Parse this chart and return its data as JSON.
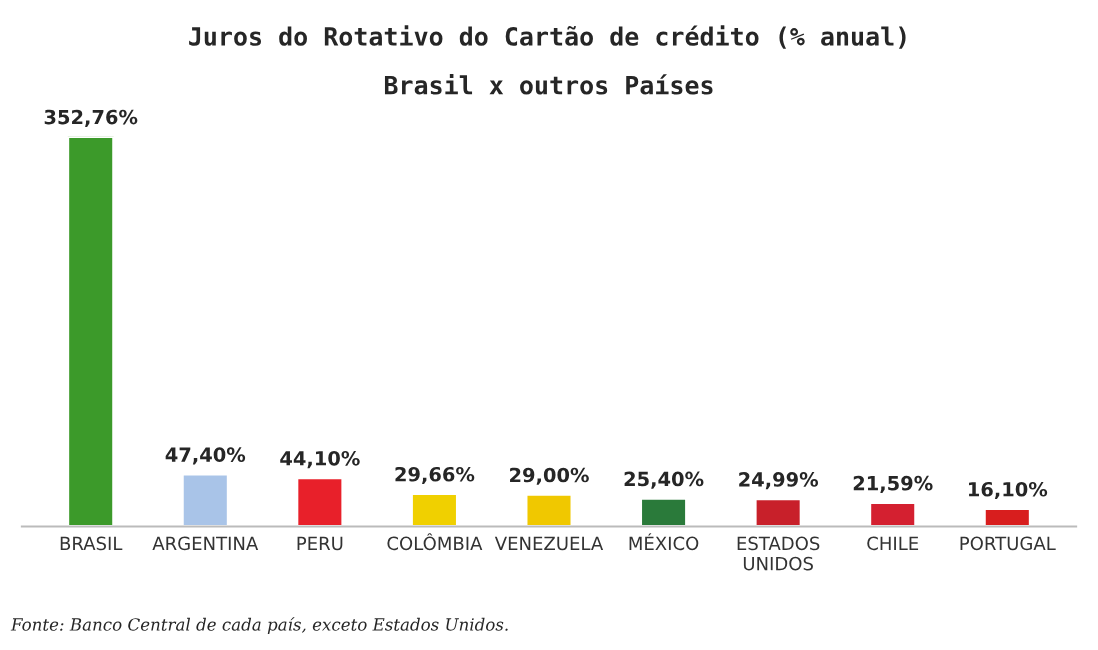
{
  "chart_data": {
    "type": "bar",
    "title": "Juros do Rotativo do Cartão de crédito (% anual)",
    "subtitle": "Brasil x outros Países",
    "categories": [
      "BRASIL",
      "ARGENTINA",
      "PERU",
      "COLÔMBIA",
      "VENEZUELA",
      "MÉXICO",
      "ESTADOS\nUNIDOS",
      "CHILE",
      "PORTUGAL"
    ],
    "values": [
      352.76,
      47.4,
      44.1,
      29.66,
      29.0,
      25.4,
      24.99,
      21.59,
      16.1
    ],
    "colors": [
      "#3c9a2a",
      "#a9c4e8",
      "#e8202a",
      "#f0d000",
      "#f0c800",
      "#2a7a3a",
      "#c8202a",
      "#d42030",
      "#d81e1e"
    ],
    "value_labels": [
      "352,76%",
      "47,40%",
      "44,10%",
      "29,66%",
      "29,00%",
      "25,40%",
      "24,99%",
      "21,59%",
      "16,10%"
    ],
    "annotations": [
      "Fonte: Banco Central de cada país, exceto Estados Unidos."
    ]
  }
}
